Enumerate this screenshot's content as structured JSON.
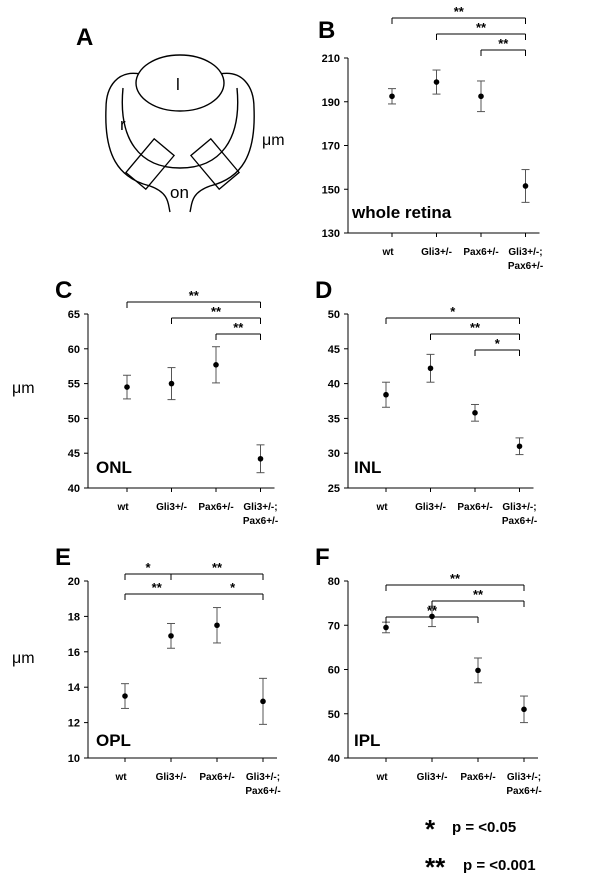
{
  "figure": {
    "schematic": {
      "letter": "A",
      "labels": {
        "lens": "l",
        "retina": "r",
        "optic_nerve": "on"
      }
    },
    "legend": [
      {
        "stars": "*",
        "text": "p = <0.05"
      },
      {
        "stars": "**",
        "text": "p = <0.001"
      }
    ]
  },
  "chart_data": [
    {
      "panel": "B",
      "type": "scatter",
      "title": "whole retina",
      "ylabel": "μm",
      "categories": [
        "wt",
        "Gli3+/-",
        "Pax6+/-",
        "Gli3+/-;Pax6+/-"
      ],
      "cat_lines": [
        [
          "wt"
        ],
        [
          "Gli3+/-"
        ],
        [
          "Pax6+/-"
        ],
        [
          "Gli3+/-;",
          "Pax6+/-"
        ]
      ],
      "ylim": [
        130,
        210
      ],
      "yticks": [
        130,
        150,
        170,
        190,
        210
      ],
      "values": [
        192.5,
        199,
        192.5,
        151.5
      ],
      "err": [
        3.5,
        5.5,
        7,
        7.5
      ],
      "brackets": [
        {
          "from": 0,
          "to": 3,
          "label": "**"
        },
        {
          "from": 1,
          "to": 3,
          "label": "**"
        },
        {
          "from": 2,
          "to": 3,
          "label": "**"
        }
      ]
    },
    {
      "panel": "C",
      "type": "scatter",
      "title": "ONL",
      "ylabel": "μm",
      "categories": [
        "wt",
        "Gli3+/-",
        "Pax6+/-",
        "Gli3+/-;Pax6+/-"
      ],
      "cat_lines": [
        [
          "wt"
        ],
        [
          "Gli3+/-"
        ],
        [
          "Pax6+/-"
        ],
        [
          "Gli3+/-;",
          "Pax6+/-"
        ]
      ],
      "ylim": [
        40,
        65
      ],
      "yticks": [
        40,
        45,
        50,
        55,
        60,
        65
      ],
      "values": [
        54.5,
        55,
        57.7,
        44.2
      ],
      "err": [
        1.7,
        2.3,
        2.6,
        2
      ],
      "brackets": [
        {
          "from": 0,
          "to": 3,
          "label": "**"
        },
        {
          "from": 1,
          "to": 3,
          "label": "**"
        },
        {
          "from": 2,
          "to": 3,
          "label": "**"
        }
      ]
    },
    {
      "panel": "D",
      "type": "scatter",
      "title": "INL",
      "ylabel": "",
      "categories": [
        "wt",
        "Gli3+/-",
        "Pax6+/-",
        "Gli3+/-;Pax6+/-"
      ],
      "cat_lines": [
        [
          "wt"
        ],
        [
          "Gli3+/-"
        ],
        [
          "Pax6+/-"
        ],
        [
          "Gli3+/-;",
          "Pax6+/-"
        ]
      ],
      "ylim": [
        25,
        50
      ],
      "yticks": [
        25,
        30,
        35,
        40,
        45,
        50
      ],
      "values": [
        38.4,
        42.2,
        35.8,
        31
      ],
      "err": [
        1.8,
        2,
        1.2,
        1.2
      ],
      "brackets": [
        {
          "from": 0,
          "to": 3,
          "label": "*"
        },
        {
          "from": 1,
          "to": 3,
          "label": "**"
        },
        {
          "from": 2,
          "to": 3,
          "label": "*"
        }
      ]
    },
    {
      "panel": "E",
      "type": "scatter",
      "title": "OPL",
      "ylabel": "μm",
      "categories": [
        "wt",
        "Gli3+/-",
        "Pax6+/-",
        "Gli3+/-;Pax6+/-"
      ],
      "cat_lines": [
        [
          "wt"
        ],
        [
          "Gli3+/-"
        ],
        [
          "Pax6+/-"
        ],
        [
          "Gli3+/-;",
          "Pax6+/-"
        ]
      ],
      "ylim": [
        10,
        20
      ],
      "yticks": [
        10,
        12,
        14,
        16,
        18,
        20
      ],
      "values": [
        13.5,
        16.9,
        17.5,
        13.2
      ],
      "err": [
        0.7,
        0.7,
        1,
        1.3
      ],
      "brackets": [
        {
          "from": 0,
          "to": 1,
          "label": "*",
          "level": 0
        },
        {
          "from": 1,
          "to": 3,
          "label": "**",
          "level": 0
        },
        {
          "from": 0,
          "to": 3,
          "label": "**",
          "level": 1,
          "label_at": 0.23
        },
        {
          "from": 0,
          "to": 3,
          "label": "*",
          "level": 1,
          "label_at": 0.78,
          "no_ticks": true
        }
      ]
    },
    {
      "panel": "F",
      "type": "scatter",
      "title": "IPL",
      "ylabel": "",
      "categories": [
        "wt",
        "Gli3+/-",
        "Pax6+/-",
        "Gli3+/-;Pax6+/-"
      ],
      "cat_lines": [
        [
          "wt"
        ],
        [
          "Gli3+/-"
        ],
        [
          "Pax6+/-"
        ],
        [
          "Gli3+/-;",
          "Pax6+/-"
        ]
      ],
      "ylim": [
        40,
        80
      ],
      "yticks": [
        40,
        50,
        60,
        70,
        80
      ],
      "values": [
        69.5,
        72,
        59.8,
        51
      ],
      "err": [
        1.2,
        2.3,
        2.8,
        3
      ],
      "brackets": [
        {
          "from": 0,
          "to": 3,
          "label": "**"
        },
        {
          "from": 1,
          "to": 3,
          "label": "**"
        },
        {
          "from": 0,
          "to": 2,
          "label": "**"
        }
      ]
    }
  ]
}
